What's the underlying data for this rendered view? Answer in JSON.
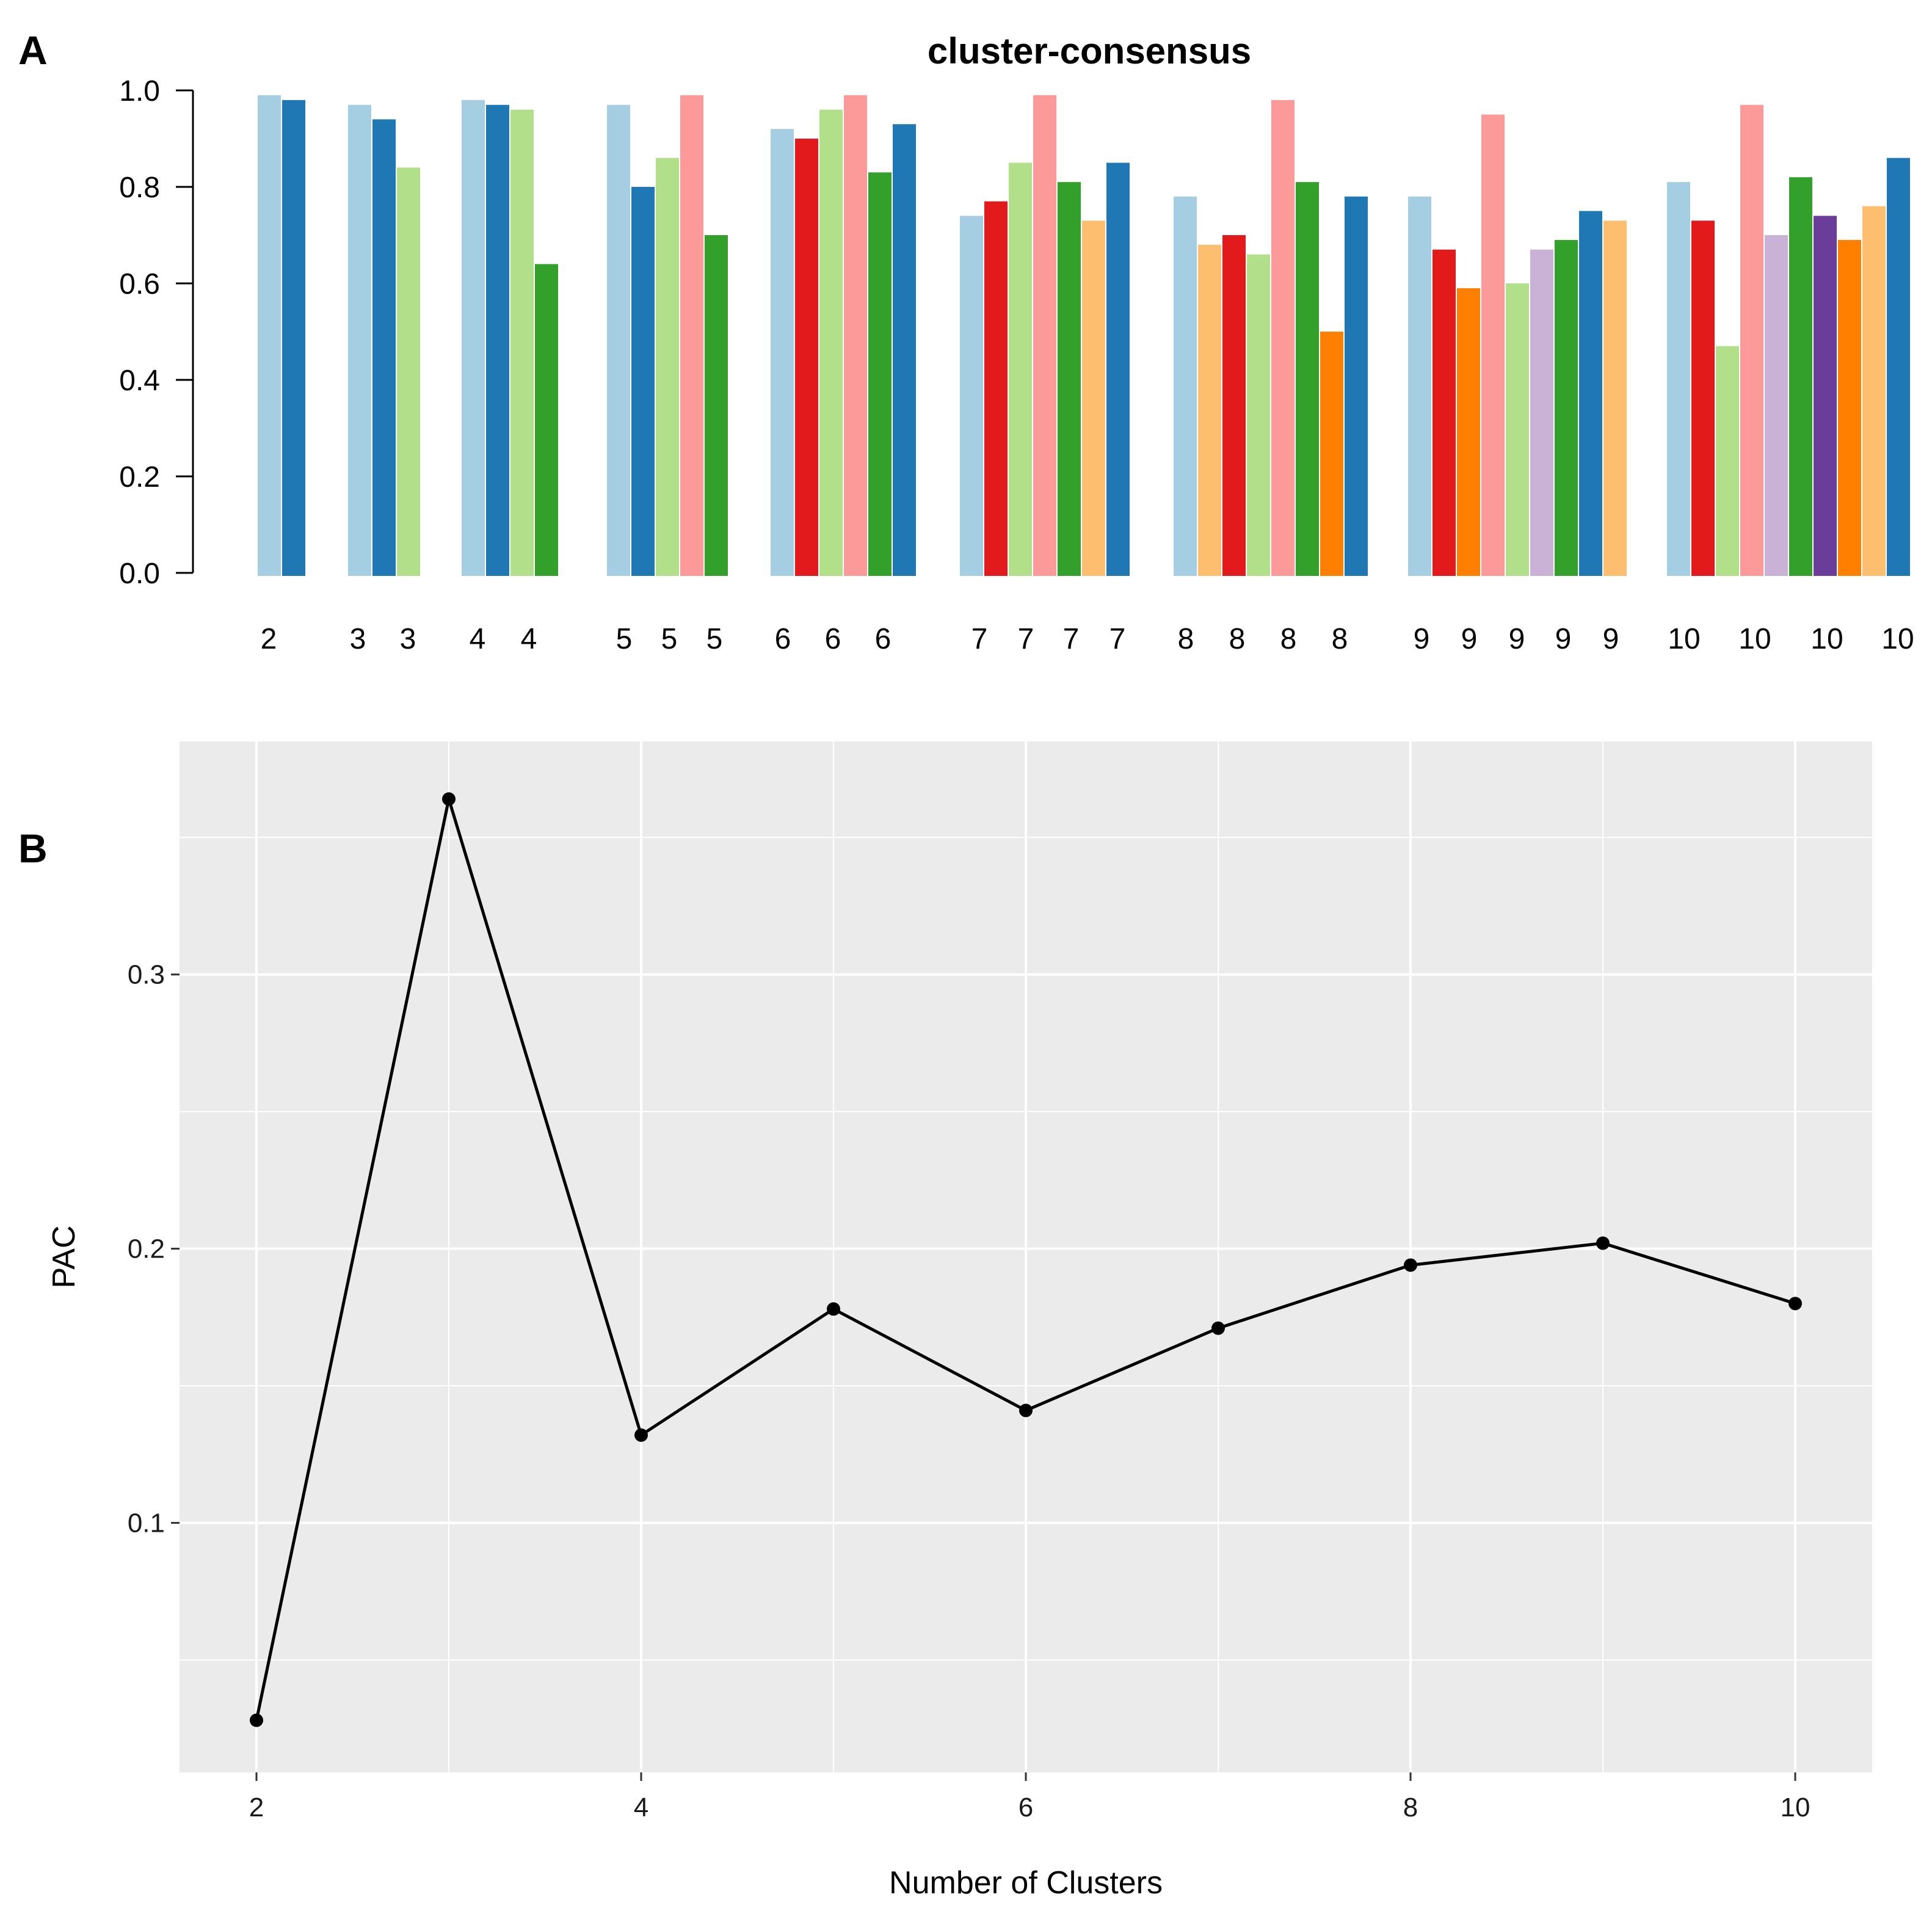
{
  "panels": {
    "a_letter": "A",
    "b_letter": "B"
  },
  "chart_data": [
    {
      "type": "bar",
      "title": "cluster-consensus",
      "ylim": [
        0,
        1.0
      ],
      "yticks": [
        "0.0",
        "0.2",
        "0.4",
        "0.6",
        "0.8",
        "1.0"
      ],
      "palette": [
        "#A6CEE3",
        "#E31A1C",
        "#B2DF8A",
        "#FB9A99",
        "#FDBF6F",
        "#CAB2D6",
        "#33A02C",
        "#6A3D9A",
        "#FF7F00",
        "#1F78B4"
      ],
      "groups": [
        {
          "k": "2",
          "bars": [
            {
              "c": "#A6CEE3",
              "v": 0.99
            },
            {
              "c": "#1F78B4",
              "v": 0.98
            }
          ],
          "labels": [
            "2"
          ]
        },
        {
          "k": "3",
          "bars": [
            {
              "c": "#A6CEE3",
              "v": 0.97
            },
            {
              "c": "#1F78B4",
              "v": 0.94
            },
            {
              "c": "#B2DF8A",
              "v": 0.84
            }
          ],
          "labels": [
            "3",
            "3"
          ]
        },
        {
          "k": "4",
          "bars": [
            {
              "c": "#A6CEE3",
              "v": 0.98
            },
            {
              "c": "#1F78B4",
              "v": 0.97
            },
            {
              "c": "#B2DF8A",
              "v": 0.96
            },
            {
              "c": "#33A02C",
              "v": 0.64
            }
          ],
          "labels": [
            "4",
            "4"
          ]
        },
        {
          "k": "5",
          "bars": [
            {
              "c": "#A6CEE3",
              "v": 0.97
            },
            {
              "c": "#1F78B4",
              "v": 0.8
            },
            {
              "c": "#B2DF8A",
              "v": 0.86
            },
            {
              "c": "#FB9A99",
              "v": 0.99
            },
            {
              "c": "#33A02C",
              "v": 0.7
            }
          ],
          "labels": [
            "5",
            "5",
            "5"
          ]
        },
        {
          "k": "6",
          "bars": [
            {
              "c": "#A6CEE3",
              "v": 0.92
            },
            {
              "c": "#E31A1C",
              "v": 0.9
            },
            {
              "c": "#B2DF8A",
              "v": 0.96
            },
            {
              "c": "#FB9A99",
              "v": 0.99
            },
            {
              "c": "#33A02C",
              "v": 0.83
            },
            {
              "c": "#1F78B4",
              "v": 0.93
            }
          ],
          "labels": [
            "6",
            "6",
            "6"
          ]
        },
        {
          "k": "7",
          "bars": [
            {
              "c": "#A6CEE3",
              "v": 0.74
            },
            {
              "c": "#E31A1C",
              "v": 0.77
            },
            {
              "c": "#B2DF8A",
              "v": 0.85
            },
            {
              "c": "#FB9A99",
              "v": 0.99
            },
            {
              "c": "#33A02C",
              "v": 0.81
            },
            {
              "c": "#FDBF6F",
              "v": 0.73
            },
            {
              "c": "#1F78B4",
              "v": 0.85
            }
          ],
          "labels": [
            "7",
            "7",
            "7",
            "7"
          ]
        },
        {
          "k": "8",
          "bars": [
            {
              "c": "#A6CEE3",
              "v": 0.78
            },
            {
              "c": "#FDBF6F",
              "v": 0.68
            },
            {
              "c": "#E31A1C",
              "v": 0.7
            },
            {
              "c": "#B2DF8A",
              "v": 0.66
            },
            {
              "c": "#FB9A99",
              "v": 0.98
            },
            {
              "c": "#33A02C",
              "v": 0.81
            },
            {
              "c": "#FF7F00",
              "v": 0.5
            },
            {
              "c": "#1F78B4",
              "v": 0.78
            }
          ],
          "labels": [
            "8",
            "8",
            "8",
            "8"
          ]
        },
        {
          "k": "9",
          "bars": [
            {
              "c": "#A6CEE3",
              "v": 0.78
            },
            {
              "c": "#E31A1C",
              "v": 0.67
            },
            {
              "c": "#FF7F00",
              "v": 0.59
            },
            {
              "c": "#FB9A99",
              "v": 0.95
            },
            {
              "c": "#B2DF8A",
              "v": 0.6
            },
            {
              "c": "#CAB2D6",
              "v": 0.67
            },
            {
              "c": "#33A02C",
              "v": 0.69
            },
            {
              "c": "#1F78B4",
              "v": 0.75
            },
            {
              "c": "#FDBF6F",
              "v": 0.73
            }
          ],
          "labels": [
            "9",
            "9",
            "9",
            "9",
            "9"
          ]
        },
        {
          "k": "10",
          "bars": [
            {
              "c": "#A6CEE3",
              "v": 0.81
            },
            {
              "c": "#E31A1C",
              "v": 0.73
            },
            {
              "c": "#B2DF8A",
              "v": 0.47
            },
            {
              "c": "#FB9A99",
              "v": 0.97
            },
            {
              "c": "#CAB2D6",
              "v": 0.7
            },
            {
              "c": "#33A02C",
              "v": 0.82
            },
            {
              "c": "#6A3D9A",
              "v": 0.74
            },
            {
              "c": "#FF7F00",
              "v": 0.69
            },
            {
              "c": "#FDBF6F",
              "v": 0.76
            },
            {
              "c": "#1F78B4",
              "v": 0.86
            }
          ],
          "labels": [
            "10",
            "10",
            "10",
            "10"
          ]
        }
      ]
    },
    {
      "type": "line",
      "title": "",
      "xlabel": "Number of Clusters",
      "ylabel": "PAC",
      "x": [
        2,
        3,
        4,
        5,
        6,
        7,
        8,
        9,
        10
      ],
      "y": [
        0.028,
        0.364,
        0.132,
        0.178,
        0.141,
        0.171,
        0.194,
        0.202,
        0.18
      ],
      "xlim": [
        1.6,
        10.4
      ],
      "ylim": [
        0.009,
        0.385
      ],
      "xticks": [
        2,
        4,
        6,
        8,
        10
      ],
      "xtick_labels": [
        "2",
        "4",
        "6",
        "8",
        "10"
      ],
      "yticks": [
        0.1,
        0.2,
        0.3
      ],
      "ytick_labels": [
        "0.1",
        "0.2",
        "0.3"
      ],
      "minor_x": [
        3,
        5,
        7,
        9
      ],
      "minor_y": [
        0.05,
        0.15,
        0.25,
        0.35
      ],
      "grid": true,
      "background": "#EBEBEB",
      "line_color": "#000000"
    }
  ]
}
